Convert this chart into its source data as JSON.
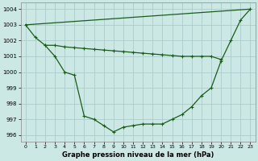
{
  "xlabel": "Graphe pression niveau de la mer (hPa)",
  "bg_color": "#cce8e4",
  "grid_color": "#aacccc",
  "line_color": "#1a5c1a",
  "xlim_min": -0.5,
  "xlim_max": 23.5,
  "ylim_min": 995.6,
  "ylim_max": 1004.4,
  "yticks": [
    996,
    997,
    998,
    999,
    1000,
    1001,
    1002,
    1003,
    1004
  ],
  "xticks": [
    0,
    1,
    2,
    3,
    4,
    5,
    6,
    7,
    8,
    9,
    10,
    11,
    12,
    13,
    14,
    15,
    16,
    17,
    18,
    19,
    20,
    21,
    22,
    23
  ],
  "line1_x": [
    0,
    1,
    2,
    3,
    4,
    5,
    6,
    7,
    8,
    9,
    10,
    11,
    12,
    13,
    14,
    15,
    16,
    17,
    18,
    19,
    20,
    21,
    22,
    23
  ],
  "line1_y": [
    1003.0,
    1002.2,
    1001.7,
    1001.0,
    1000.0,
    999.8,
    997.2,
    997.0,
    996.6,
    996.2,
    996.5,
    996.6,
    996.7,
    996.7,
    996.7,
    997.0,
    997.3,
    997.8,
    998.5,
    999.0,
    1000.7,
    1002.0,
    1003.3,
    1004.0
  ],
  "line2_x": [
    0,
    23
  ],
  "line2_y": [
    1003.0,
    1004.0
  ],
  "line3_x": [
    2,
    3,
    4,
    5,
    6,
    7,
    8,
    9,
    10,
    11,
    12,
    13,
    14,
    15,
    16,
    17,
    18,
    19,
    20
  ],
  "line3_y": [
    1001.7,
    1001.7,
    1001.6,
    1001.55,
    1001.5,
    1001.45,
    1001.4,
    1001.35,
    1001.3,
    1001.25,
    1001.2,
    1001.15,
    1001.1,
    1001.05,
    1001.0,
    1001.0,
    1001.0,
    1001.0,
    1000.8
  ],
  "marker": "+",
  "marker_size": 3,
  "linewidth": 0.9
}
